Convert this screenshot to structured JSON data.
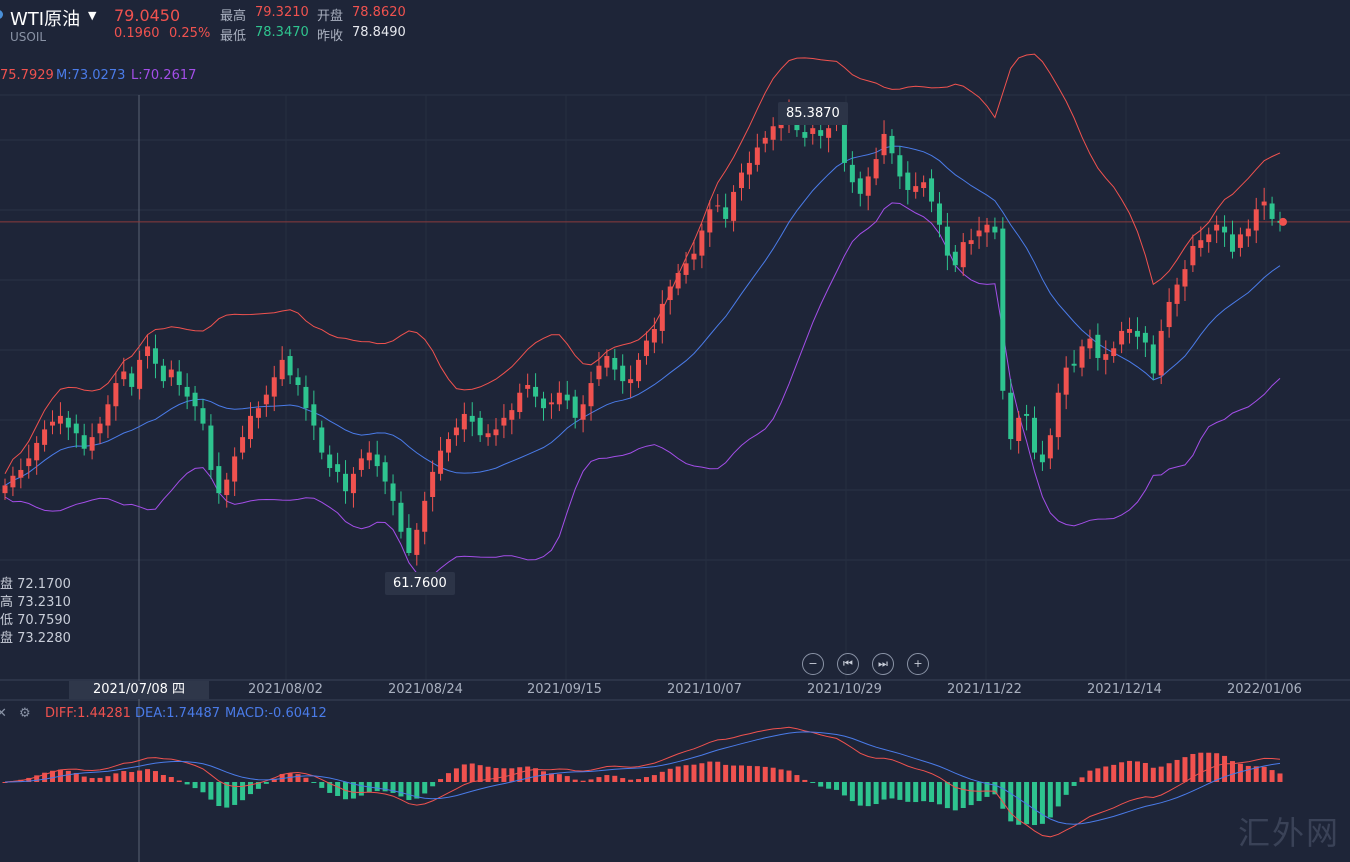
{
  "header": {
    "name": "WTI原油",
    "symbol": "USOIL",
    "price": "79.0450",
    "change": "0.1960",
    "change_pct": "0.25%",
    "stats": [
      {
        "label": "最高",
        "value": "79.3210",
        "color": "#f0524f"
      },
      {
        "label": "开盘",
        "value": "78.8620",
        "color": "#f0524f"
      },
      {
        "label": "最低",
        "value": "78.3470",
        "color": "#2ec48f"
      },
      {
        "label": "昨收",
        "value": "78.8490",
        "color": "#e6e8ee"
      }
    ]
  },
  "bollinger": {
    "upper": "75.7929",
    "mid": "M:73.0273",
    "lower": "L:70.2617"
  },
  "ohlc_panel": [
    "盘 72.1700",
    "高 73.2310",
    "低 70.7590",
    "盘 73.2280"
  ],
  "markers": {
    "high": "85.3870",
    "low": "61.7600"
  },
  "dates": [
    "2021/07/08 四",
    "2021/08/02",
    "2021/08/24",
    "2021/09/15",
    "2021/10/07",
    "2021/10/29",
    "2021/11/22",
    "2021/12/14",
    "2022/01/06"
  ],
  "macd": {
    "diff": "DIFF:1.44281",
    "dea": "DEA:1.74487",
    "macd": "MACD:-0.60412"
  },
  "watermark": "汇外网",
  "controls": [
    "zoom-out",
    "prev",
    "next",
    "zoom-in"
  ],
  "colors": {
    "up": "#f0524f",
    "down": "#2ec48f",
    "mid": "#4a7be8",
    "lower": "#a34ee8",
    "bg": "#1e2538"
  },
  "chart_data": {
    "type": "candlestick",
    "closes": [
      65.4,
      65.9,
      66.2,
      66.8,
      67.6,
      68.3,
      68.7,
      69.0,
      68.4,
      68.1,
      67.3,
      67.9,
      68.6,
      69.6,
      70.7,
      71.3,
      70.5,
      71.9,
      72.6,
      71.7,
      70.8,
      71.4,
      70.6,
      70.0,
      69.5,
      68.6,
      66.2,
      65.0,
      65.7,
      66.9,
      67.9,
      69.0,
      69.4,
      70.1,
      71.0,
      71.9,
      71.1,
      70.6,
      69.4,
      68.5,
      67.1,
      66.3,
      66.1,
      65.1,
      66.0,
      66.8,
      67.1,
      66.4,
      65.6,
      64.6,
      63.0,
      61.9,
      63.1,
      64.6,
      66.1,
      67.2,
      67.8,
      68.4,
      69.1,
      68.7,
      68.0,
      68.1,
      68.3,
      68.9,
      69.3,
      70.2,
      70.6,
      70.0,
      69.4,
      69.7,
      70.2,
      69.8,
      68.9,
      69.6,
      70.7,
      71.6,
      72.1,
      71.4,
      70.8,
      70.9,
      71.9,
      72.9,
      73.5,
      74.8,
      75.7,
      76.4,
      76.9,
      77.4,
      78.6,
      79.7,
      79.9,
      79.2,
      80.6,
      81.6,
      82.1,
      82.9,
      83.4,
      84.0,
      84.2,
      84.9,
      83.8,
      83.4,
      83.9,
      83.5,
      83.9,
      84.2,
      82.1,
      81.1,
      80.5,
      81.4,
      82.3,
      83.6,
      82.6,
      81.4,
      80.7,
      80.9,
      81.1,
      80.1,
      78.9,
      77.3,
      76.8,
      78.0,
      78.1,
      78.6,
      78.9,
      78.5,
      70.3,
      67.8,
      68.9,
      69.0,
      67.1,
      66.6,
      68.0,
      70.2,
      71.5,
      71.6,
      72.6,
      73.0,
      72.0,
      72.2,
      72.5,
      73.4,
      73.5,
      73.1,
      72.8,
      71.2,
      73.4,
      74.9,
      75.8,
      76.6,
      77.8,
      78.1,
      78.4,
      78.9,
      78.5,
      77.5,
      78.4,
      78.7,
      79.7,
      80.1,
      79.2,
      79.0
    ]
  }
}
